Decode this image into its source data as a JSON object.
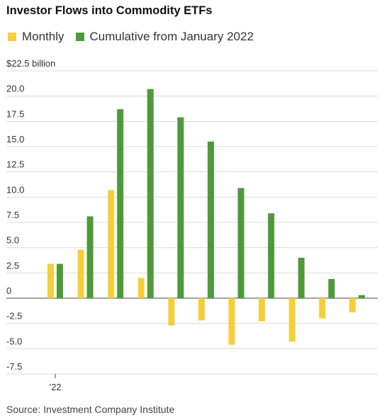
{
  "title": "Investor Flows into Commodity ETFs",
  "legend": [
    {
      "label": "Monthly",
      "color": "#F5CF3A"
    },
    {
      "label": "Cumulative from January 2022",
      "color": "#4E9A3A"
    }
  ],
  "source": "Source: Investment Company Institute",
  "chart_data": {
    "type": "bar",
    "ylim": [
      -7.5,
      22.5
    ],
    "yticks": [
      {
        "value": 22.5,
        "label": "$22.5 billion"
      },
      {
        "value": 20.0,
        "label": "20.0"
      },
      {
        "value": 17.5,
        "label": "17.5"
      },
      {
        "value": 15.0,
        "label": "15.0"
      },
      {
        "value": 12.5,
        "label": "12.5"
      },
      {
        "value": 10.0,
        "label": "10.0"
      },
      {
        "value": 7.5,
        "label": "7.5"
      },
      {
        "value": 5.0,
        "label": "5.0"
      },
      {
        "value": 2.5,
        "label": "2.5"
      },
      {
        "value": 0,
        "label": "0"
      },
      {
        "value": -2.5,
        "label": "-2.5"
      },
      {
        "value": -5.0,
        "label": "-5.0"
      },
      {
        "value": -7.5,
        "label": "-7.5"
      }
    ],
    "xtick_label": "’22",
    "series": [
      {
        "name": "Monthly",
        "color": "#F5CF3A",
        "values": [
          3.4,
          4.8,
          10.7,
          2.0,
          -2.7,
          -2.2,
          -4.6,
          -2.3,
          -4.3,
          -2.0,
          -1.4
        ]
      },
      {
        "name": "Cumulative from January 2022",
        "color": "#4E9A3A",
        "values": [
          3.4,
          8.1,
          18.7,
          20.7,
          17.9,
          15.5,
          10.9,
          8.4,
          4.0,
          1.9,
          0.3
        ]
      }
    ]
  }
}
